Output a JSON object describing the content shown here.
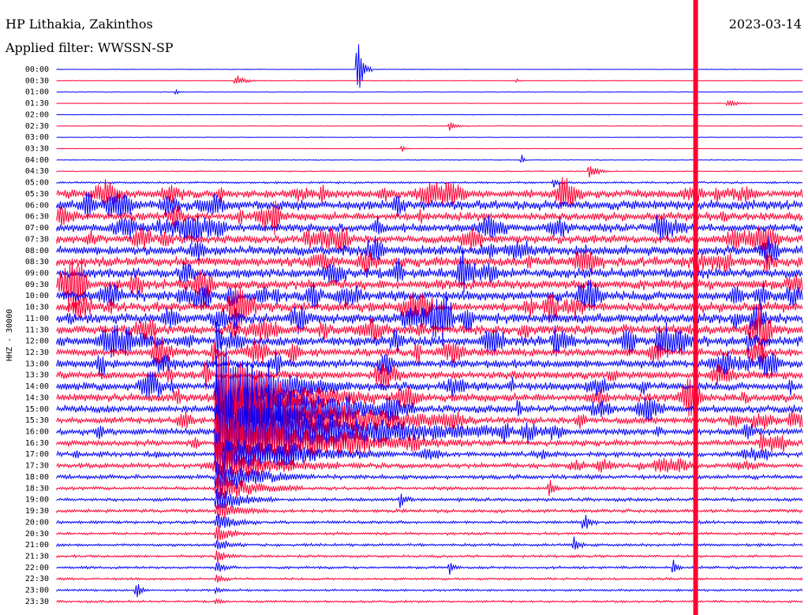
{
  "header": {
    "station": "HP Lithakia, Zakinthos",
    "filter": "Applied filter: WWSSN-SP",
    "date": "2023-03-14"
  },
  "chart_data": {
    "type": "line",
    "title": "HP Lithakia, Zakinthos",
    "subtitle": "Applied filter: WWSSN-SP",
    "ylabel": "HHZ - 30000",
    "date": "2023-03-14",
    "row_labels": [
      "00:00",
      "00:30",
      "01:00",
      "01:30",
      "02:00",
      "02:30",
      "03:00",
      "03:30",
      "04:00",
      "04:30",
      "05:00",
      "05:30",
      "06:00",
      "06:30",
      "07:00",
      "07:30",
      "08:00",
      "08:30",
      "09:00",
      "09:30",
      "10:00",
      "10:30",
      "11:00",
      "11:30",
      "12:00",
      "12:30",
      "13:00",
      "13:30",
      "14:00",
      "14:30",
      "15:00",
      "15:30",
      "16:00",
      "16:30",
      "17:00",
      "17:30",
      "18:00",
      "18:30",
      "19:00",
      "19:30",
      "20:00",
      "20:30",
      "21:00",
      "21:30",
      "22:00",
      "22:30",
      "23:00",
      "23:30"
    ],
    "trace_colors": [
      "#0000ff",
      "#ff0033"
    ],
    "row_noise": [
      0.4,
      0.4,
      0.4,
      0.4,
      0.4,
      0.4,
      0.4,
      0.4,
      0.5,
      0.6,
      1.2,
      5,
      6,
      5,
      5,
      5,
      6,
      6,
      6,
      6,
      6,
      6,
      6,
      6,
      6,
      5,
      5,
      5,
      5,
      5,
      4.5,
      4,
      4,
      3.5,
      3,
      3,
      2.5,
      2,
      2,
      2,
      1.8,
      1.6,
      1.6,
      1.5,
      1.5,
      1.4,
      1.3,
      1.3
    ],
    "events": [
      {
        "row": 0,
        "minute": 12.1,
        "amplitude": 42,
        "duration_min": 0.6
      },
      {
        "row": 1,
        "minute": 7.2,
        "amplitude": 9,
        "duration_min": 0.8
      },
      {
        "row": 1,
        "minute": 18.5,
        "amplitude": 3,
        "duration_min": 0.2
      },
      {
        "row": 2,
        "minute": 4.8,
        "amplitude": 4,
        "duration_min": 0.3
      },
      {
        "row": 3,
        "minute": 27.0,
        "amplitude": 5,
        "duration_min": 1.0
      },
      {
        "row": 5,
        "minute": 15.8,
        "amplitude": 6,
        "duration_min": 0.8
      },
      {
        "row": 7,
        "minute": 13.9,
        "amplitude": 6,
        "duration_min": 0.3
      },
      {
        "row": 8,
        "minute": 18.7,
        "amplitude": 8,
        "duration_min": 0.2
      },
      {
        "row": 9,
        "minute": 21.4,
        "amplitude": 10,
        "duration_min": 0.9
      },
      {
        "row": 10,
        "minute": 20.0,
        "amplitude": 8,
        "duration_min": 0.4
      },
      {
        "row": 11,
        "minute": 20.2,
        "amplitude": 14,
        "duration_min": 0.6
      },
      {
        "row": 11,
        "minute": 2.0,
        "amplitude": 12,
        "duration_min": 0.5
      },
      {
        "row": 17,
        "minute": 28.5,
        "amplitude": 20,
        "duration_min": 0.5
      },
      {
        "row": 24,
        "minute": 6.4,
        "amplitude": 58,
        "duration_min": 0.4
      },
      {
        "row": 24,
        "minute": 27.8,
        "amplitude": 18,
        "duration_min": 0.4
      },
      {
        "row": 25,
        "minute": 6.3,
        "amplitude": 25,
        "duration_min": 0.3
      },
      {
        "row": 28,
        "minute": 6.4,
        "amplitude": 60,
        "duration_min": 5.5
      },
      {
        "row": 29,
        "minute": 6.4,
        "amplitude": 60,
        "duration_min": 6.5
      },
      {
        "row": 30,
        "minute": 6.4,
        "amplitude": 65,
        "duration_min": 8.0
      },
      {
        "row": 31,
        "minute": 6.4,
        "amplitude": 70,
        "duration_min": 10.0
      },
      {
        "row": 32,
        "minute": 6.4,
        "amplitude": 60,
        "duration_min": 12.0
      },
      {
        "row": 33,
        "minute": 6.4,
        "amplitude": 40,
        "duration_min": 10.0
      },
      {
        "row": 34,
        "minute": 6.4,
        "amplitude": 30,
        "duration_min": 7.0
      },
      {
        "row": 35,
        "minute": 6.4,
        "amplitude": 28,
        "duration_min": 5.0
      },
      {
        "row": 36,
        "minute": 6.4,
        "amplitude": 26,
        "duration_min": 4.0
      },
      {
        "row": 37,
        "minute": 6.4,
        "amplitude": 22,
        "duration_min": 3.5
      },
      {
        "row": 38,
        "minute": 6.4,
        "amplitude": 18,
        "duration_min": 2.5
      },
      {
        "row": 39,
        "minute": 6.4,
        "amplitude": 16,
        "duration_min": 2.0
      },
      {
        "row": 40,
        "minute": 6.4,
        "amplitude": 14,
        "duration_min": 1.8
      },
      {
        "row": 41,
        "minute": 6.4,
        "amplitude": 12,
        "duration_min": 1.5
      },
      {
        "row": 42,
        "minute": 6.4,
        "amplitude": 10,
        "duration_min": 1.2
      },
      {
        "row": 43,
        "minute": 6.4,
        "amplitude": 9,
        "duration_min": 1.0
      },
      {
        "row": 44,
        "minute": 6.4,
        "amplitude": 8,
        "duration_min": 0.8
      },
      {
        "row": 45,
        "minute": 6.4,
        "amplitude": 7,
        "duration_min": 0.6
      },
      {
        "row": 46,
        "minute": 6.4,
        "amplitude": 6,
        "duration_min": 0.5
      },
      {
        "row": 47,
        "minute": 6.4,
        "amplitude": 5,
        "duration_min": 0.4
      },
      {
        "row": 37,
        "minute": 19.8,
        "amplitude": 12,
        "duration_min": 0.5
      },
      {
        "row": 38,
        "minute": 13.8,
        "amplitude": 10,
        "duration_min": 0.6
      },
      {
        "row": 40,
        "minute": 21.2,
        "amplitude": 14,
        "duration_min": 0.6
      },
      {
        "row": 42,
        "minute": 20.8,
        "amplitude": 12,
        "duration_min": 0.5
      },
      {
        "row": 44,
        "minute": 15.8,
        "amplitude": 12,
        "duration_min": 0.4
      },
      {
        "row": 44,
        "minute": 24.8,
        "amplitude": 14,
        "duration_min": 0.4
      },
      {
        "row": 46,
        "minute": 3.2,
        "amplitude": 12,
        "duration_min": 0.5
      }
    ],
    "continuous_band": {
      "minute": 25.7,
      "color": "#ff0033"
    }
  }
}
